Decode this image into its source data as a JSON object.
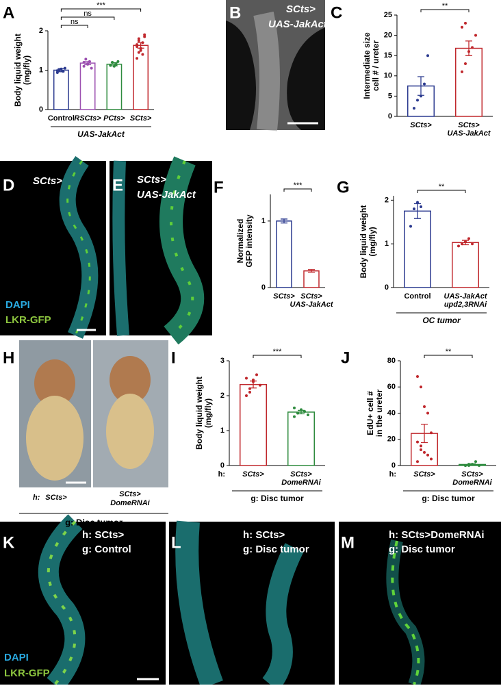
{
  "panels": [
    "A",
    "B",
    "C",
    "D",
    "E",
    "F",
    "G",
    "H",
    "I",
    "J",
    "K",
    "L",
    "M"
  ],
  "chart_data": [
    {
      "type": "bar",
      "ylabel": [
        "Body liquid weight",
        "(mg/fly)"
      ],
      "categories": [
        [
          "Control"
        ],
        [
          "RSCts>"
        ],
        [
          "PCts>"
        ],
        [
          "SCts>"
        ]
      ],
      "values": [
        1.0,
        1.18,
        1.15,
        1.63
      ],
      "errors": [
        0.04,
        0.04,
        0.04,
        0.07
      ],
      "colors": [
        "#2b3a8f",
        "#9b4fb0",
        "#2e8b3e",
        "#c0282d"
      ],
      "points": [
        [
          0.94,
          1.0,
          1.03,
          0.97,
          1.05,
          0.99
        ],
        [
          1.1,
          1.28,
          1.15,
          1.22,
          1.05,
          1.2
        ],
        [
          1.12,
          1.2,
          1.1,
          1.15,
          1.22,
          1.13
        ],
        [
          1.3,
          1.45,
          1.55,
          1.7,
          1.85,
          1.6,
          1.75,
          1.5,
          1.4,
          1.9,
          1.65,
          1.8,
          1.55
        ]
      ],
      "ylim": [
        0,
        2
      ],
      "yticks": [
        0,
        1,
        2
      ],
      "brackets": [
        [
          0,
          1,
          "ns"
        ],
        [
          0,
          2,
          "ns"
        ],
        [
          0,
          3,
          "***"
        ]
      ],
      "group": "UAS-JakAct"
    },
    {
      "type": "bar",
      "ylabel": [
        "Intermediate size",
        "cell # / ureter"
      ],
      "categories": [
        [
          "SCts>"
        ],
        [
          "SCts>",
          "UAS-JakAct"
        ]
      ],
      "values": [
        7.5,
        16.8
      ],
      "errors": [
        2.3,
        1.8
      ],
      "colors": [
        "#2b3a8f",
        "#c0282d"
      ],
      "points": [
        [
          2,
          4,
          5,
          8,
          15
        ],
        [
          11,
          13,
          16,
          17,
          20,
          22,
          23
        ]
      ],
      "ylim": [
        0,
        25
      ],
      "yticks": [
        0,
        5,
        10,
        15,
        20,
        25
      ],
      "brackets": [
        [
          0,
          1,
          "**"
        ]
      ]
    },
    {
      "type": "bar",
      "ylabel": [
        "Normalized",
        "GFP intensity"
      ],
      "categories": [
        [
          "SCts>"
        ],
        [
          "SCts>",
          "UAS-JakAct"
        ]
      ],
      "values": [
        1.0,
        0.25
      ],
      "errors": [
        0.03,
        0.02
      ],
      "colors": [
        "#2b3a8f",
        "#c0282d"
      ],
      "ylim": [
        0,
        1.4
      ],
      "yticks": [
        0,
        1
      ],
      "brackets": [
        [
          0,
          1,
          "***"
        ]
      ]
    },
    {
      "type": "bar",
      "ylabel": [
        "Body liquid weight",
        "(mg/fly)"
      ],
      "categories": [
        [
          "Control"
        ],
        [
          "UAS-JakAct",
          "upd2,3RNAi"
        ]
      ],
      "values": [
        1.75,
        1.03
      ],
      "errors": [
        0.17,
        0.05
      ],
      "colors": [
        "#2b3a8f",
        "#c0282d"
      ],
      "points": [
        [
          1.4,
          1.8,
          1.95,
          1.85
        ],
        [
          0.95,
          1.0,
          1.05,
          1.12,
          1.0
        ]
      ],
      "ylim": [
        0,
        2.1
      ],
      "yticks": [
        0,
        1,
        2
      ],
      "brackets": [
        [
          0,
          1,
          "**"
        ]
      ],
      "group": "OC tumor"
    },
    {
      "type": "bar",
      "ylabel": [
        "Body liquid weight",
        "(mg/fly)"
      ],
      "row_prefix": "h:",
      "categories": [
        [
          "SCts>"
        ],
        [
          "SCts>",
          "DomeRNAi"
        ]
      ],
      "values": [
        2.32,
        1.53
      ],
      "errors": [
        0.1,
        0.05
      ],
      "colors": [
        "#c0282d",
        "#2e8b3e"
      ],
      "points": [
        [
          2.0,
          2.2,
          2.4,
          2.6,
          2.3,
          2.5,
          2.1,
          2.45
        ],
        [
          1.4,
          1.5,
          1.6,
          1.55,
          1.45,
          1.65,
          1.5
        ]
      ],
      "ylim": [
        0,
        3
      ],
      "yticks": [
        0,
        1,
        2,
        3
      ],
      "brackets": [
        [
          0,
          1,
          "***"
        ]
      ],
      "group": "g: Disc tumor"
    },
    {
      "type": "bar",
      "ylabel": [
        "EdU+ cell #",
        "in the ureter"
      ],
      "row_prefix": "h:",
      "categories": [
        [
          "SCts>"
        ],
        [
          "SCts>",
          "DomeRNAi"
        ]
      ],
      "values": [
        24.5,
        0.8
      ],
      "errors": [
        7,
        0.5
      ],
      "colors": [
        "#c0282d",
        "#2e8b3e"
      ],
      "points": [
        [
          68,
          60,
          45,
          40,
          25,
          18,
          12,
          10,
          8,
          5,
          3,
          15
        ],
        [
          0,
          0,
          1,
          3,
          0,
          0,
          1
        ]
      ],
      "ylim": [
        0,
        80
      ],
      "yticks": [
        0,
        20,
        40,
        60,
        80
      ],
      "brackets": [
        [
          0,
          1,
          "**"
        ]
      ],
      "group": "g: Disc tumor"
    }
  ],
  "images": {
    "B": [
      "SCts>",
      "UAS-JakAct"
    ],
    "D": [
      "SCts>"
    ],
    "D_legend": [
      "DAPI",
      "LKR-GFP"
    ],
    "E": [
      "SCts>",
      "UAS-JakAct"
    ],
    "H": {
      "row_prefix": "h:",
      "labels": [
        [
          "SCts>"
        ],
        [
          "SCts>",
          "DomeRNAi"
        ]
      ],
      "group": "g: Disc tumor"
    },
    "K": [
      "h: SCts>",
      "g: Control"
    ],
    "K_legend": [
      "DAPI",
      "LKR-GFP"
    ],
    "L": [
      "h: SCts>",
      "g: Disc tumor"
    ],
    "M": [
      "h: SCts>DomeRNAi",
      "g: Disc tumor"
    ]
  }
}
